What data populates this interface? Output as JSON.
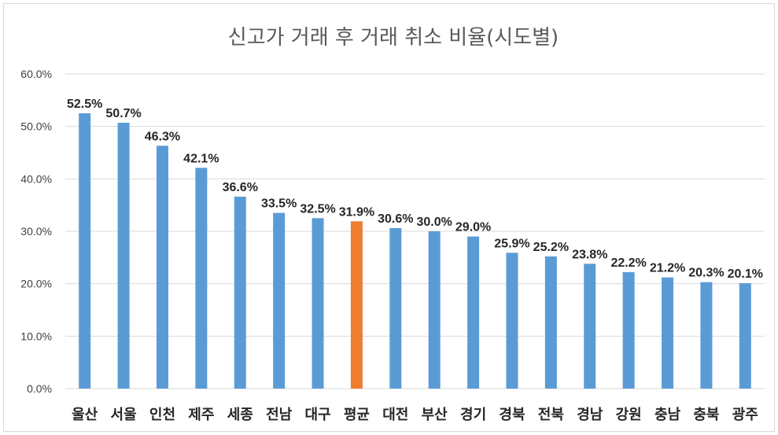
{
  "chart_data": {
    "type": "bar",
    "title": "신고가 거래 후 거래 취소 비율(시도별)",
    "xlabel": "",
    "ylabel": "",
    "categories": [
      "울산",
      "서울",
      "인천",
      "제주",
      "세종",
      "전남",
      "대구",
      "평균",
      "대전",
      "부산",
      "경기",
      "경북",
      "전북",
      "경남",
      "강원",
      "충남",
      "충북",
      "광주"
    ],
    "values": [
      52.5,
      50.7,
      46.3,
      42.1,
      36.6,
      33.5,
      32.5,
      31.9,
      30.6,
      30.0,
      29.0,
      25.9,
      25.2,
      23.8,
      22.2,
      21.2,
      20.3,
      20.1
    ],
    "data_labels": [
      "52.5%",
      "50.7%",
      "46.3%",
      "42.1%",
      "36.6%",
      "33.5%",
      "32.5%",
      "31.9%",
      "30.6%",
      "30.0%",
      "29.0%",
      "25.9%",
      "25.2%",
      "23.8%",
      "22.2%",
      "21.2%",
      "20.3%",
      "20.1%"
    ],
    "ylim": [
      0,
      60
    ],
    "yticks": [
      0,
      10,
      20,
      30,
      40,
      50,
      60
    ],
    "ytick_labels": [
      "0.0%",
      "10.0%",
      "20.0%",
      "30.0%",
      "40.0%",
      "50.0%",
      "60.0%"
    ],
    "grid": true,
    "legend": "none",
    "colors": {
      "bar": "#5b9bd5",
      "highlight": "#ed7d31",
      "highlight_category": "평균",
      "grid": "#d9d9d9"
    }
  }
}
